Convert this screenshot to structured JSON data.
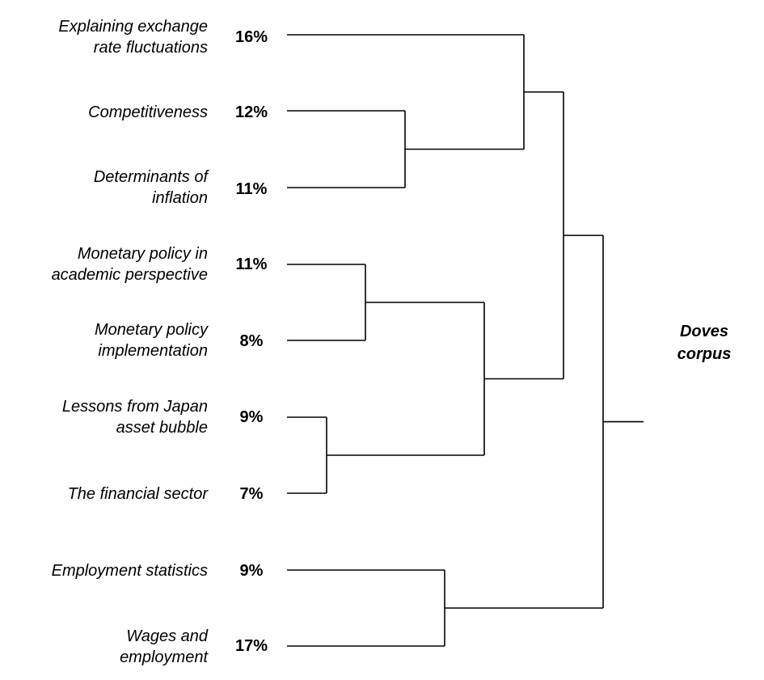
{
  "root": {
    "line1": "Doves",
    "line2": "corpus"
  },
  "leaves": [
    {
      "id": "exchange",
      "lines": [
        "Explaining exchange",
        "rate fluctuations"
      ],
      "pct": "16%"
    },
    {
      "id": "competitiveness",
      "lines": [
        "Competitiveness"
      ],
      "pct": "12%"
    },
    {
      "id": "inflation",
      "lines": [
        "Determinants of",
        "inflation"
      ],
      "pct": "11%"
    },
    {
      "id": "academic",
      "lines": [
        "Monetary policy in",
        "academic perspective"
      ],
      "pct": "11%"
    },
    {
      "id": "implementation",
      "lines": [
        "Monetary policy",
        "implementation"
      ],
      "pct": "8%"
    },
    {
      "id": "japan",
      "lines": [
        "Lessons from Japan",
        "asset bubble"
      ],
      "pct": "9%"
    },
    {
      "id": "financial",
      "lines": [
        "The financial sector"
      ],
      "pct": "7%"
    },
    {
      "id": "employment-stats",
      "lines": [
        "Employment statistics"
      ],
      "pct": "9%"
    },
    {
      "id": "wages",
      "lines": [
        "Wages and",
        "employment"
      ],
      "pct": "17%"
    }
  ],
  "tree": {
    "children": [
      {
        "children": [
          {
            "children": [
              {
                "leaf": 0
              },
              {
                "children": [
                  {
                    "leaf": 1
                  },
                  {
                    "leaf": 2
                  }
                ]
              }
            ]
          },
          {
            "children": [
              {
                "children": [
                  {
                    "leaf": 3
                  },
                  {
                    "leaf": 4
                  }
                ]
              },
              {
                "children": [
                  {
                    "leaf": 5
                  },
                  {
                    "leaf": 6
                  }
                ]
              }
            ]
          }
        ]
      },
      {
        "children": [
          {
            "leaf": 7
          },
          {
            "leaf": 8
          }
        ]
      }
    ]
  }
}
